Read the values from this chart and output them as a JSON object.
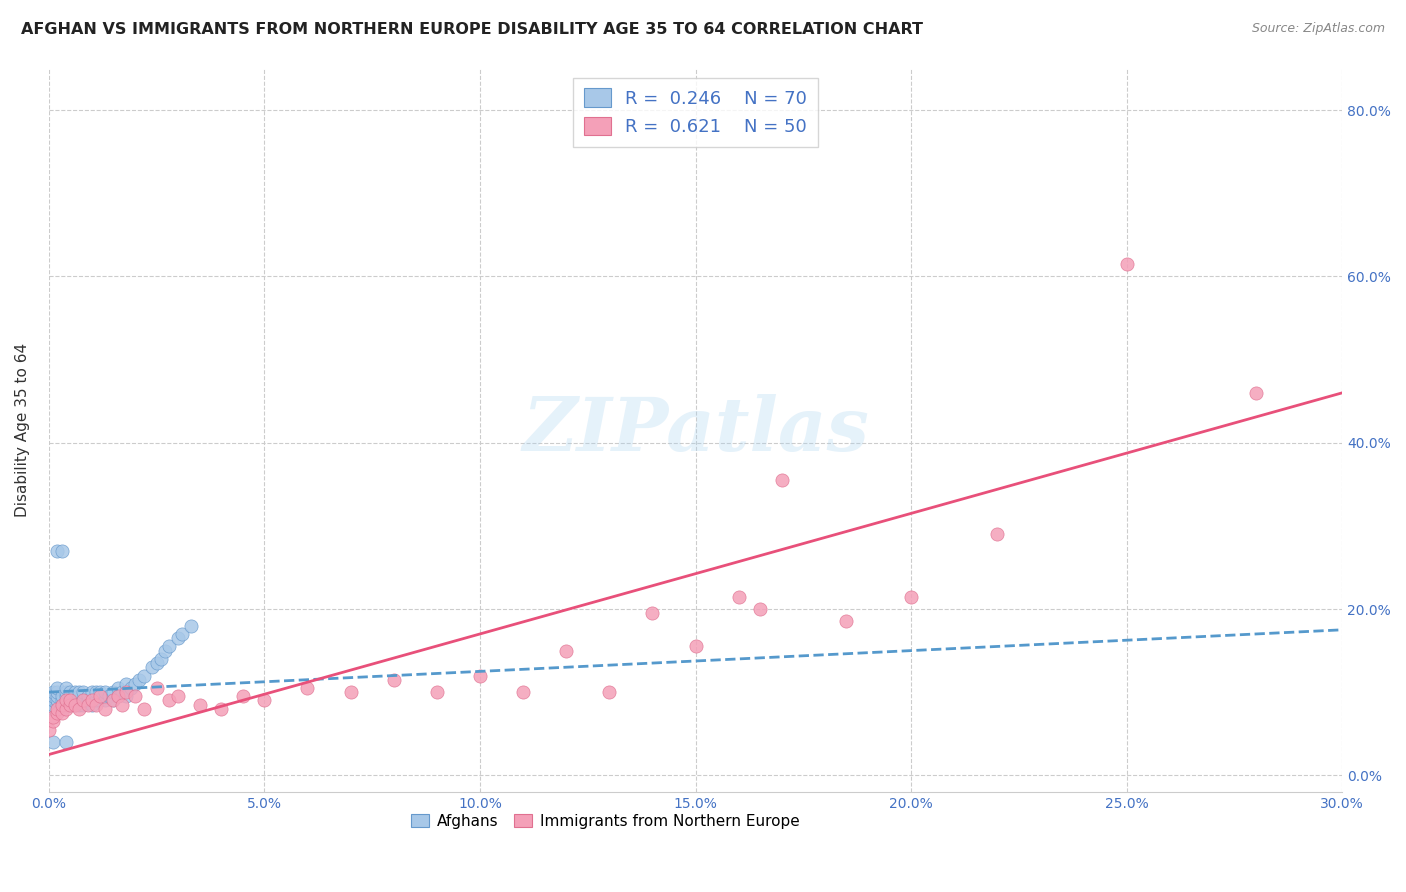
{
  "title": "AFGHAN VS IMMIGRANTS FROM NORTHERN EUROPE DISABILITY AGE 35 TO 64 CORRELATION CHART",
  "source": "Source: ZipAtlas.com",
  "ylabel": "Disability Age 35 to 64",
  "xlim": [
    0.0,
    0.3
  ],
  "ylim": [
    -0.02,
    0.85
  ],
  "x_tick_vals": [
    0.0,
    0.05,
    0.1,
    0.15,
    0.2,
    0.25,
    0.3
  ],
  "y_tick_vals": [
    0.0,
    0.2,
    0.4,
    0.6,
    0.8
  ],
  "legend_r1": "0.246",
  "legend_n1": "70",
  "legend_r2": "0.621",
  "legend_n2": "50",
  "color_afghan": "#a8c8e8",
  "color_northern": "#f4a0b8",
  "watermark": "ZIPatlas",
  "afghans_x": [
    0.0,
    0.0,
    0.001,
    0.001,
    0.001,
    0.001,
    0.001,
    0.002,
    0.002,
    0.002,
    0.002,
    0.002,
    0.003,
    0.003,
    0.003,
    0.003,
    0.004,
    0.004,
    0.004,
    0.004,
    0.004,
    0.005,
    0.005,
    0.005,
    0.005,
    0.006,
    0.006,
    0.006,
    0.007,
    0.007,
    0.007,
    0.007,
    0.008,
    0.008,
    0.008,
    0.009,
    0.009,
    0.01,
    0.01,
    0.01,
    0.011,
    0.011,
    0.012,
    0.012,
    0.013,
    0.013,
    0.014,
    0.015,
    0.015,
    0.016,
    0.016,
    0.017,
    0.018,
    0.018,
    0.019,
    0.02,
    0.021,
    0.022,
    0.024,
    0.025,
    0.026,
    0.027,
    0.028,
    0.03,
    0.031,
    0.033,
    0.002,
    0.003,
    0.001,
    0.004
  ],
  "afghans_y": [
    0.09,
    0.095,
    0.08,
    0.085,
    0.09,
    0.095,
    0.1,
    0.085,
    0.09,
    0.095,
    0.1,
    0.105,
    0.08,
    0.085,
    0.09,
    0.095,
    0.085,
    0.09,
    0.095,
    0.1,
    0.105,
    0.085,
    0.09,
    0.095,
    0.1,
    0.085,
    0.09,
    0.1,
    0.085,
    0.09,
    0.095,
    0.1,
    0.085,
    0.09,
    0.1,
    0.09,
    0.095,
    0.085,
    0.09,
    0.1,
    0.09,
    0.1,
    0.09,
    0.1,
    0.09,
    0.1,
    0.095,
    0.09,
    0.1,
    0.095,
    0.105,
    0.1,
    0.095,
    0.11,
    0.105,
    0.11,
    0.115,
    0.12,
    0.13,
    0.135,
    0.14,
    0.15,
    0.155,
    0.165,
    0.17,
    0.18,
    0.27,
    0.27,
    0.04,
    0.04
  ],
  "northern_x": [
    0.0,
    0.001,
    0.001,
    0.002,
    0.002,
    0.003,
    0.003,
    0.004,
    0.004,
    0.005,
    0.005,
    0.006,
    0.007,
    0.008,
    0.009,
    0.01,
    0.011,
    0.012,
    0.013,
    0.015,
    0.016,
    0.017,
    0.018,
    0.02,
    0.022,
    0.025,
    0.028,
    0.03,
    0.035,
    0.04,
    0.045,
    0.05,
    0.06,
    0.07,
    0.08,
    0.09,
    0.1,
    0.11,
    0.12,
    0.13,
    0.14,
    0.15,
    0.16,
    0.165,
    0.17,
    0.185,
    0.2,
    0.22,
    0.25,
    0.28
  ],
  "northern_y": [
    0.055,
    0.065,
    0.07,
    0.075,
    0.08,
    0.075,
    0.085,
    0.08,
    0.09,
    0.085,
    0.09,
    0.085,
    0.08,
    0.09,
    0.085,
    0.09,
    0.085,
    0.095,
    0.08,
    0.09,
    0.095,
    0.085,
    0.1,
    0.095,
    0.08,
    0.105,
    0.09,
    0.095,
    0.085,
    0.08,
    0.095,
    0.09,
    0.105,
    0.1,
    0.115,
    0.1,
    0.12,
    0.1,
    0.15,
    0.1,
    0.195,
    0.155,
    0.215,
    0.2,
    0.355,
    0.185,
    0.215,
    0.29,
    0.615,
    0.46
  ],
  "afghan_trend_x": [
    0.0,
    0.3
  ],
  "afghan_trend_y": [
    0.1,
    0.175
  ],
  "northern_trend_x": [
    0.0,
    0.3
  ],
  "northern_trend_y": [
    0.025,
    0.46
  ]
}
